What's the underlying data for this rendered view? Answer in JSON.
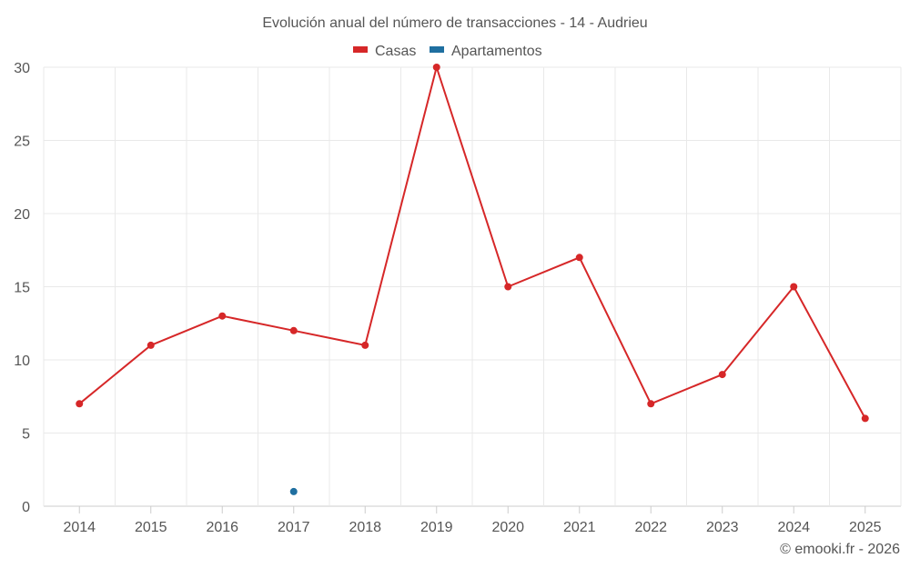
{
  "chart_data": {
    "type": "line",
    "title": "Evolución anual del número de transacciones - 14 - Audrieu",
    "xlabel": "",
    "ylabel": "",
    "categories": [
      "2014",
      "2015",
      "2016",
      "2017",
      "2018",
      "2019",
      "2020",
      "2021",
      "2022",
      "2023",
      "2024",
      "2025"
    ],
    "ylim": [
      0,
      30
    ],
    "yticks": [
      "0",
      "5",
      "10",
      "15",
      "20",
      "25",
      "30"
    ],
    "grid": true,
    "legend_position": "top-center",
    "series": [
      {
        "name": "Casas",
        "color": "#d62728",
        "values": [
          7,
          11,
          13,
          12,
          11,
          30,
          15,
          17,
          7,
          9,
          15,
          6
        ]
      },
      {
        "name": "Apartamentos",
        "color": "#1f6fa0",
        "values": [
          null,
          null,
          null,
          1,
          null,
          null,
          null,
          null,
          null,
          null,
          null,
          null
        ]
      }
    ]
  },
  "credit": "© emooki.fr - 2026"
}
